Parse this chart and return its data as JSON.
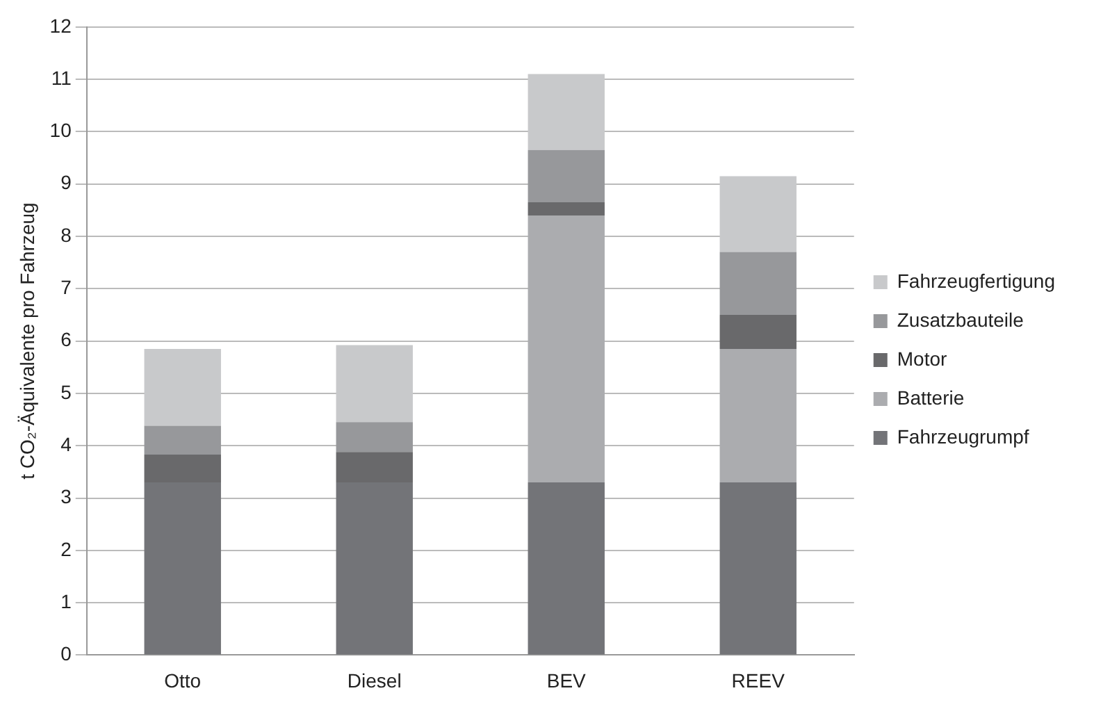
{
  "chart_data": {
    "type": "bar",
    "stacked": true,
    "ylabel": "t CO₂-Äquivalente pro Fahrzeug",
    "categories": [
      "Otto",
      "Diesel",
      "BEV",
      "REEV"
    ],
    "series": [
      {
        "name": "Fahrzeugrumpf",
        "color": "#737478",
        "values": [
          3.3,
          3.3,
          3.3,
          3.3
        ]
      },
      {
        "name": "Batterie",
        "color": "#abacaf",
        "values": [
          0,
          0,
          5.1,
          2.55
        ]
      },
      {
        "name": "Motor",
        "color": "#69696b",
        "values": [
          0.53,
          0.58,
          0.25,
          0.65
        ]
      },
      {
        "name": "Zusatzbauteile",
        "color": "#97989b",
        "values": [
          0.55,
          0.57,
          1.0,
          1.2
        ]
      },
      {
        "name": "Fahrzeugfertigung",
        "color": "#c8c9cb",
        "values": [
          1.47,
          1.47,
          1.45,
          1.45
        ]
      }
    ],
    "ylim": [
      0,
      12
    ],
    "yticks": [
      0,
      1,
      2,
      3,
      4,
      5,
      6,
      7,
      8,
      9,
      10,
      11,
      12
    ],
    "grid": "y",
    "legend": "right"
  }
}
